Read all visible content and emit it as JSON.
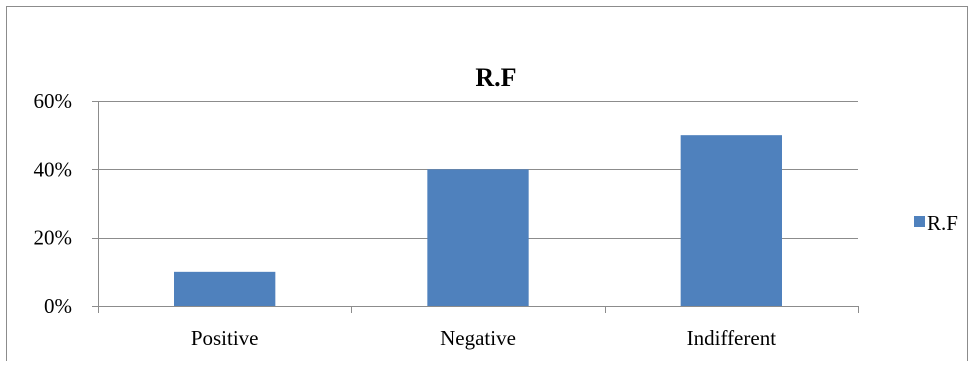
{
  "chart_data": {
    "type": "bar",
    "title": "R.F",
    "xlabel": "",
    "ylabel": "",
    "categories": [
      "Positive",
      "Negative",
      "Indifferent"
    ],
    "series": [
      {
        "name": "R.F",
        "values": [
          0.1,
          0.4,
          0.5
        ],
        "color": "#4f81bd"
      }
    ],
    "ylim": [
      0,
      0.6
    ],
    "yticks": [
      0,
      0.2,
      0.4,
      0.6
    ],
    "ytick_labels": [
      "0%",
      "20%",
      "40%",
      "60%"
    ],
    "grid": true,
    "legend": "right"
  }
}
